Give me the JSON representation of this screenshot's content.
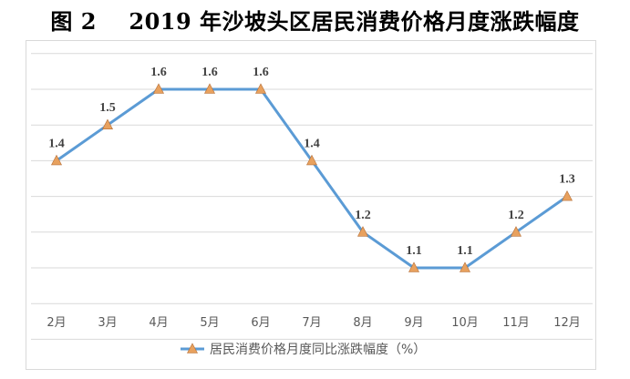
{
  "figure": {
    "title": "图 2    2019 年沙坡头区居民消费价格月度涨跌幅度"
  },
  "chart_data": {
    "type": "line",
    "categories": [
      "2月",
      "3月",
      "4月",
      "5月",
      "6月",
      "7月",
      "8月",
      "9月",
      "10月",
      "11月",
      "12月"
    ],
    "series": [
      {
        "name": "居民消费价格月度同比涨跌幅度（%）",
        "values": [
          1.4,
          1.5,
          1.6,
          1.6,
          1.6,
          1.4,
          1.2,
          1.1,
          1.1,
          1.2,
          1.3
        ],
        "labels": [
          "1.4",
          "1.5",
          "1.6",
          "1.6",
          "1.6",
          "1.4",
          "1.2",
          "1.1",
          "1.1",
          "1.2",
          "1.3"
        ],
        "line_color": "#5b9bd5",
        "marker_color": "#e8a15e",
        "marker": "triangle"
      }
    ],
    "ylim": [
      0.9,
      1.7
    ],
    "grid": true,
    "legend": "bottom",
    "colors": {
      "gridline": "#d9d9d9",
      "tick_text": "#595959",
      "label_text": "#404040"
    }
  }
}
